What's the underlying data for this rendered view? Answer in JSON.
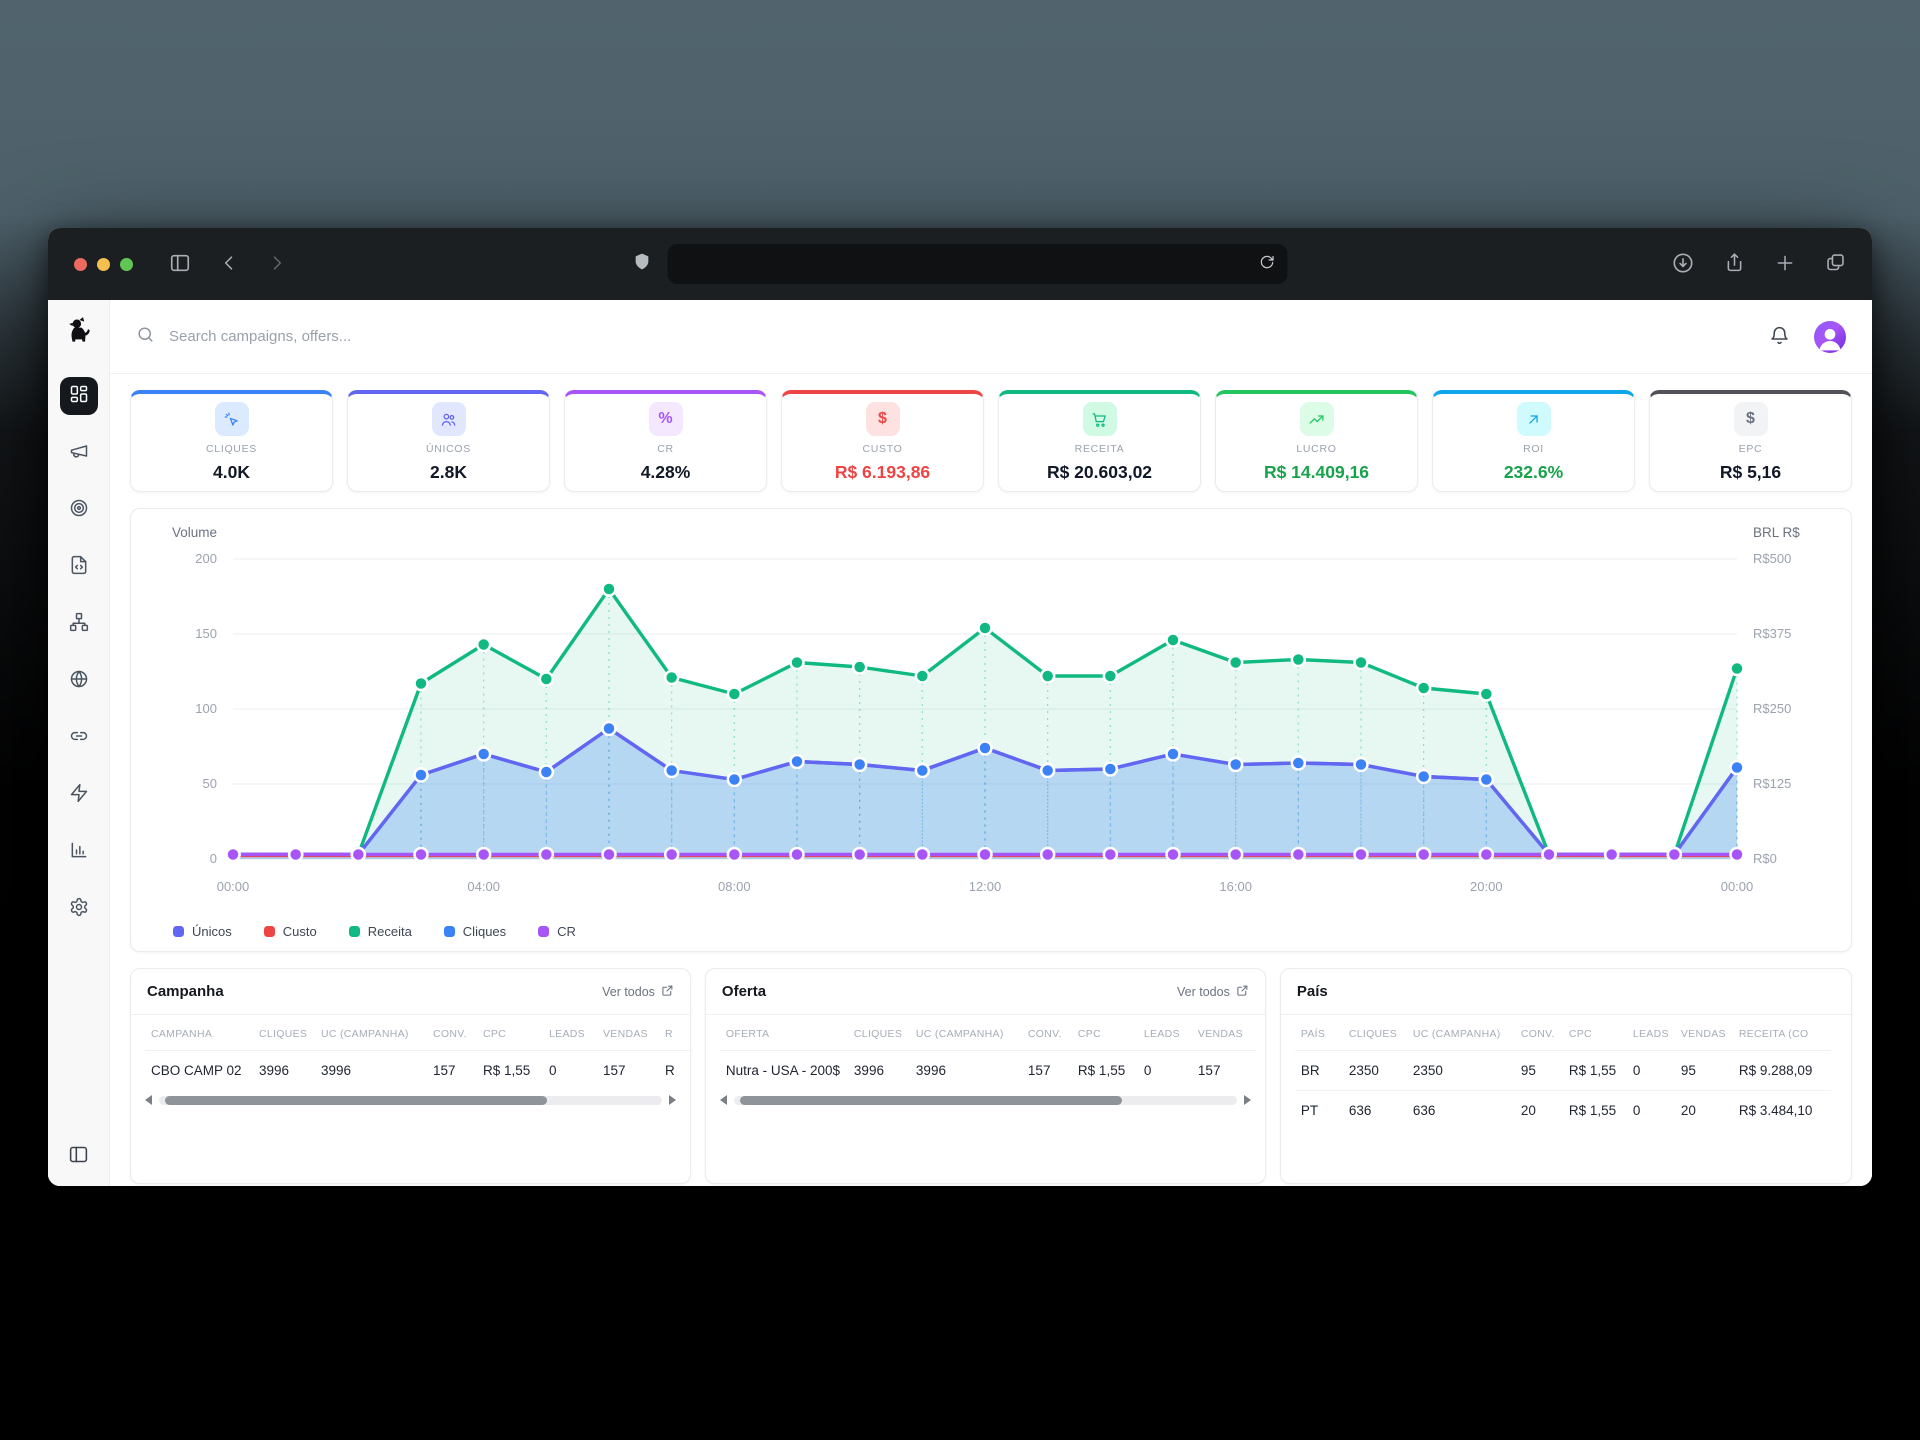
{
  "browser": {
    "address_text": "",
    "window_controls": [
      "close",
      "minimize",
      "zoom"
    ],
    "light_colors": [
      "#ed6a5f",
      "#f5bf4f",
      "#61c555"
    ]
  },
  "app": {
    "search_placeholder": "Search campaigns, offers..."
  },
  "sidebar": {
    "items": [
      {
        "name": "dashboard",
        "icon": "layout-dashboard",
        "active": true
      },
      {
        "name": "campaigns",
        "icon": "megaphone",
        "active": false
      },
      {
        "name": "offers",
        "icon": "target",
        "active": false
      },
      {
        "name": "landing-pages",
        "icon": "file-code",
        "active": false
      },
      {
        "name": "flows",
        "icon": "network",
        "active": false
      },
      {
        "name": "domains",
        "icon": "globe",
        "active": false
      },
      {
        "name": "links",
        "icon": "link",
        "active": false
      },
      {
        "name": "automation",
        "icon": "zap",
        "active": false
      },
      {
        "name": "reports",
        "icon": "chart",
        "active": false
      },
      {
        "name": "settings",
        "icon": "settings",
        "active": false
      }
    ]
  },
  "kpis": [
    {
      "label": "CLIQUES",
      "value": "4.0K",
      "accent": "#3b82f6",
      "chip_bg": "#dbeafe",
      "icon": "cursor-click",
      "icon_color": "#3b82f6",
      "value_color": "#111827"
    },
    {
      "label": "ÚNICOS",
      "value": "2.8K",
      "accent": "#6366f1",
      "chip_bg": "#e0e7ff",
      "icon": "users",
      "icon_color": "#6366f1",
      "value_color": "#111827"
    },
    {
      "label": "CR",
      "value": "4.28%",
      "accent": "#a855f7",
      "chip_bg": "#f3e8ff",
      "glyph": "%",
      "icon_color": "#a855f7",
      "value_color": "#111827"
    },
    {
      "label": "CUSTO",
      "value": "R$ 6.193,86",
      "accent": "#ef4444",
      "chip_bg": "#fee2e2",
      "glyph": "$",
      "icon_color": "#ef4444",
      "value_color": "#ef4444"
    },
    {
      "label": "RECEITA",
      "value": "R$ 20.603,02",
      "accent": "#10b981",
      "chip_bg": "#d1fae5",
      "icon": "cart",
      "icon_color": "#10b981",
      "value_color": "#111827"
    },
    {
      "label": "LUCRO",
      "value": "R$ 14.409,16",
      "accent": "#22c55e",
      "chip_bg": "#dcfce7",
      "icon": "trending-up",
      "icon_color": "#22c55e",
      "value_color": "#16a34a"
    },
    {
      "label": "ROI",
      "value": "232.6%",
      "accent": "#0ea5e9",
      "chip_bg": "#cffafe",
      "icon": "arrow-up-right",
      "icon_color": "#0ea5e9",
      "value_color": "#16a34a"
    },
    {
      "label": "EPC",
      "value": "R$ 5,16",
      "accent": "#52525b",
      "chip_bg": "#f1f3f5",
      "glyph": "$",
      "icon_color": "#6b7280",
      "value_color": "#111827"
    }
  ],
  "chart_data": {
    "type": "line",
    "left_axis": {
      "title": "Volume",
      "ticks": [
        0,
        50,
        100,
        150,
        200
      ],
      "max": 200
    },
    "right_axis": {
      "title": "BRL R$",
      "ticks": [
        "R$0",
        "R$125",
        "R$250",
        "R$375",
        "R$500"
      ]
    },
    "x_tick_positions": [
      0,
      4,
      8,
      12,
      16,
      20,
      24
    ],
    "x_tick_labels": [
      "00:00",
      "04:00",
      "08:00",
      "12:00",
      "16:00",
      "20:00",
      "00:00"
    ],
    "grid": true,
    "legend_position": "bottom-left",
    "series": [
      {
        "name": "Únicos",
        "color": "#6366f1",
        "dots": false,
        "fill": null,
        "values": [
          3,
          3,
          3,
          56,
          70,
          58,
          87,
          59,
          53,
          65,
          63,
          59,
          74,
          59,
          60,
          70,
          63,
          64,
          63,
          55,
          53,
          3,
          3,
          3,
          61
        ]
      },
      {
        "name": "Custo",
        "color": "#ef4444",
        "dots": false,
        "fill": null,
        "values": [
          2,
          2,
          2,
          2,
          2,
          2,
          2,
          2,
          2,
          2,
          2,
          2,
          2,
          2,
          2,
          2,
          2,
          2,
          2,
          2,
          2,
          2,
          2,
          2,
          2
        ]
      },
      {
        "name": "Receita",
        "color": "#10b981",
        "dots": true,
        "fill": "rgba(16,185,129,0.10)",
        "values": [
          3,
          3,
          3,
          117,
          143,
          120,
          180,
          121,
          110,
          131,
          128,
          122,
          154,
          122,
          122,
          146,
          131,
          133,
          131,
          114,
          110,
          3,
          3,
          3,
          127
        ]
      },
      {
        "name": "Cliques",
        "color": "#3b82f6",
        "dots": true,
        "fill": "rgba(59,130,246,0.28)",
        "values": [
          3,
          3,
          3,
          56,
          70,
          58,
          87,
          59,
          53,
          65,
          63,
          59,
          74,
          59,
          60,
          70,
          63,
          64,
          63,
          55,
          53,
          3,
          3,
          3,
          61
        ]
      },
      {
        "name": "CR",
        "color": "#a855f7",
        "dots": true,
        "fill": null,
        "values": [
          3,
          3,
          3,
          3,
          3,
          3,
          3,
          3,
          3,
          3,
          3,
          3,
          3,
          3,
          3,
          3,
          3,
          3,
          3,
          3,
          3,
          3,
          3,
          3,
          3
        ]
      }
    ],
    "draw_order": [
      "Receita",
      "Cliques",
      "Únicos",
      "Custo",
      "CR"
    ]
  },
  "tables": [
    {
      "title": "Campanha",
      "link": "Ver todos",
      "scrollbar": true,
      "columns": [
        "CAMPANHA",
        "CLIQUES",
        "UC (CAMPANHA)",
        "CONV.",
        "CPC",
        "LEADS",
        "VENDAS",
        "R"
      ],
      "rows": [
        [
          "CBO CAMP 02",
          "3996",
          "3996",
          "157",
          "R$ 1,55",
          "0",
          "157",
          "R"
        ]
      ]
    },
    {
      "title": "Oferta",
      "link": "Ver todos",
      "scrollbar": true,
      "columns": [
        "OFERTA",
        "CLIQUES",
        "UC (CAMPANHA)",
        "CONV.",
        "CPC",
        "LEADS",
        "VENDAS"
      ],
      "rows": [
        [
          "Nutra - USA - 200$",
          "3996",
          "3996",
          "157",
          "R$ 1,55",
          "0",
          "157"
        ]
      ]
    },
    {
      "title": "País",
      "link": null,
      "scrollbar": false,
      "columns": [
        "PAÍS",
        "CLIQUES",
        "UC (CAMPANHA)",
        "CONV.",
        "CPC",
        "LEADS",
        "VENDAS",
        "RECEITA (CO"
      ],
      "rows": [
        [
          "BR",
          "2350",
          "2350",
          "95",
          "R$ 1,55",
          "0",
          "95",
          "R$ 9.288,09"
        ],
        [
          "PT",
          "636",
          "636",
          "20",
          "R$ 1,55",
          "0",
          "20",
          "R$ 3.484,10"
        ]
      ]
    }
  ]
}
